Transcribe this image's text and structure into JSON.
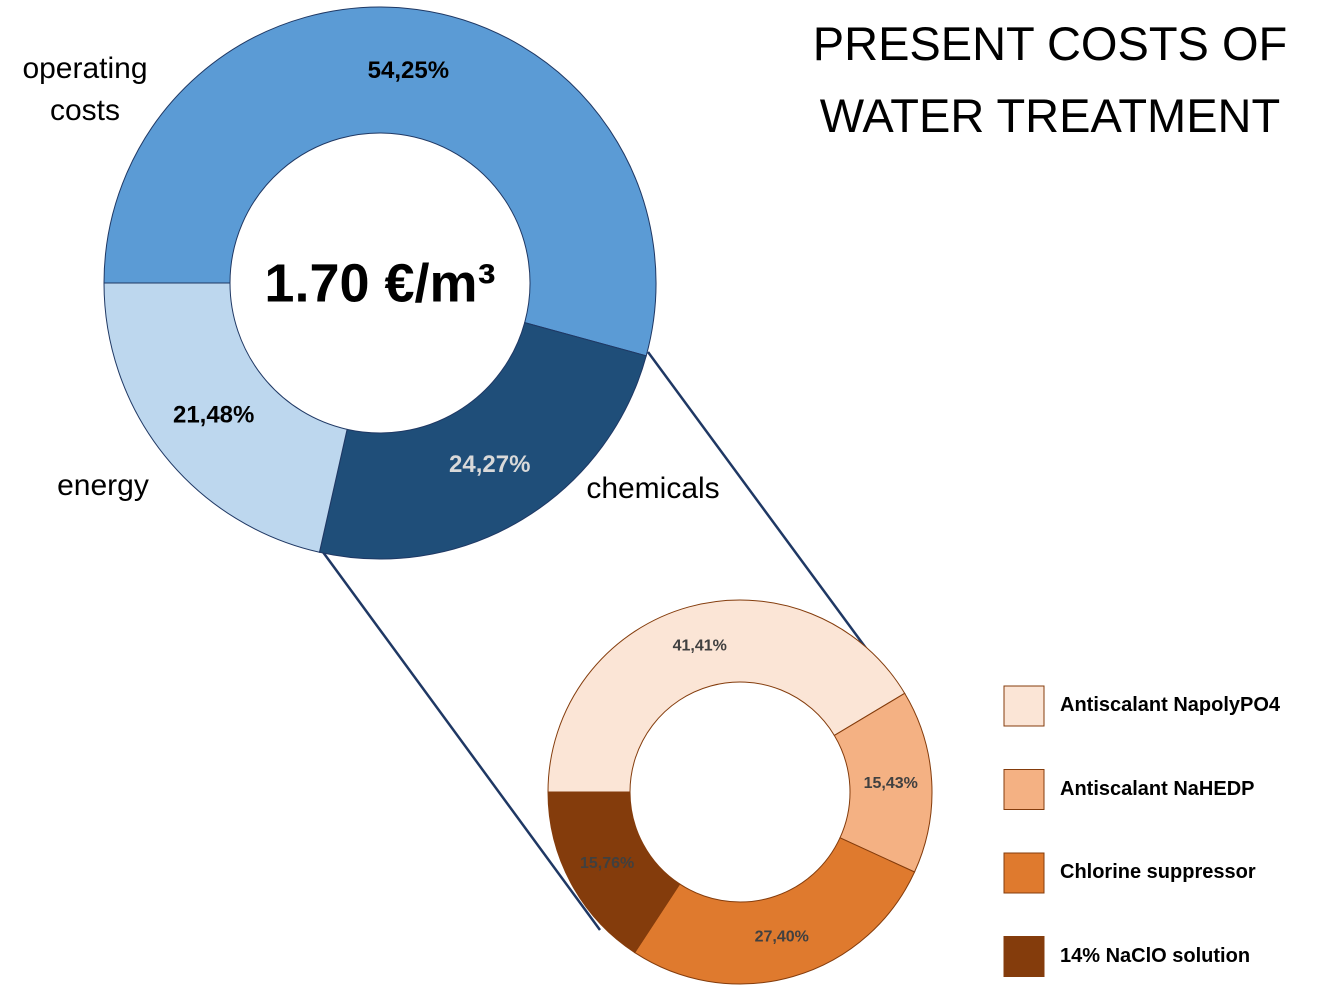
{
  "title": "PRESENT COSTS OF WATER TREATMENT",
  "chart_data": [
    {
      "type": "donut",
      "center_label": "1.70 €/m³",
      "categories": [
        "operating costs",
        "chemicals",
        "energy"
      ],
      "values": [
        54.25,
        24.27,
        21.48
      ],
      "value_labels": [
        "54,25%",
        "24,27%",
        "21,48%"
      ],
      "colors": [
        "#5b9bd5",
        "#1f4e79",
        "#bdd7ee"
      ],
      "label_colors": [
        "#000000",
        "#d9d9d9",
        "#000000"
      ]
    },
    {
      "type": "donut",
      "categories": [
        "Antiscalant NapolyPO4",
        "Antiscalant NaHEDP",
        "Chlorine suppressor",
        "14% NaClO solution"
      ],
      "values": [
        41.41,
        15.43,
        27.4,
        15.76
      ],
      "value_labels": [
        "41,41%",
        "15,43%",
        "27,40%",
        "15,76%"
      ],
      "colors": [
        "#fbe5d6",
        "#f4b183",
        "#df7a2e",
        "#843c0c"
      ],
      "legend": "right"
    }
  ]
}
